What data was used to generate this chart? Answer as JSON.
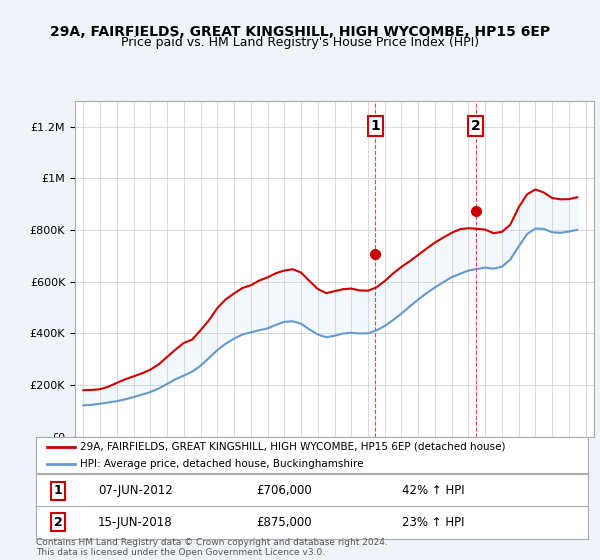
{
  "title": "29A, FAIRFIELDS, GREAT KINGSHILL, HIGH WYCOMBE, HP15 6EP",
  "subtitle": "Price paid vs. HM Land Registry's House Price Index (HPI)",
  "legend_line1": "29A, FAIRFIELDS, GREAT KINGSHILL, HIGH WYCOMBE, HP15 6EP (detached house)",
  "legend_line2": "HPI: Average price, detached house, Buckinghamshire",
  "transaction1_label": "1",
  "transaction1_date": "07-JUN-2012",
  "transaction1_price": "£706,000",
  "transaction1_hpi": "42% ↑ HPI",
  "transaction1_year": 2012.44,
  "transaction1_value": 706000,
  "transaction2_label": "2",
  "transaction2_date": "15-JUN-2018",
  "transaction2_price": "£875,000",
  "transaction2_hpi": "23% ↑ HPI",
  "transaction2_year": 2018.44,
  "transaction2_value": 875000,
  "footnote": "Contains HM Land Registry data © Crown copyright and database right 2024.\nThis data is licensed under the Open Government Licence v3.0.",
  "line_color_red": "#cc0000",
  "line_color_blue": "#6699cc",
  "fill_color_blue": "#d0e4f7",
  "vline_color": "#cc0000",
  "background_color": "#f0f4f8",
  "plot_bg_color": "#ffffff",
  "ylim_min": 0,
  "ylim_max": 1300000,
  "xlim_min": 1994.5,
  "xlim_max": 2025.5
}
